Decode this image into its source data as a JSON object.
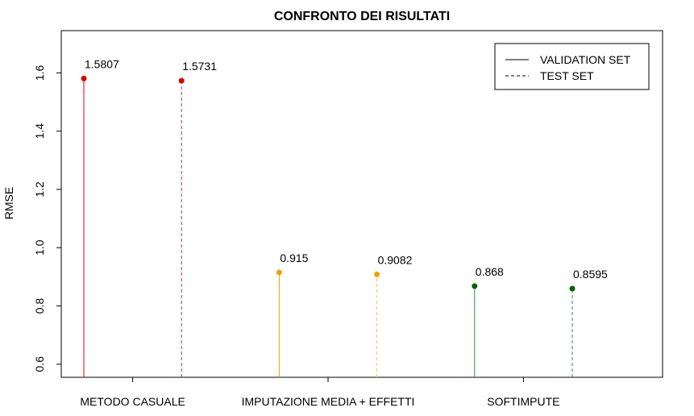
{
  "chart_data": {
    "type": "lollipop",
    "title": "CONFRONTO DEI RISULTATI",
    "xlabel": "",
    "ylabel": "RMSE",
    "ylim": [
      0.555,
      1.745
    ],
    "yticks": [
      "0.6",
      "0.8",
      "1.0",
      "1.2",
      "1.4",
      "1.6"
    ],
    "categories": [
      "METODO CASUALE",
      "IMPUTAZIONE MEDIA + EFFETTI",
      "SOFTIMPUTE"
    ],
    "series": [
      {
        "name": "VALIDATION SET",
        "line_style": "solid",
        "values": [
          1.5807,
          0.915,
          0.868
        ],
        "labels": [
          "1.5807",
          "0.915",
          "0.868"
        ]
      },
      {
        "name": "TEST SET",
        "line_style": "dashed",
        "values": [
          1.5731,
          0.9082,
          0.8595
        ],
        "labels": [
          "1.5731",
          "0.9082",
          "0.8595"
        ]
      }
    ],
    "colors": {
      "validation": [
        "#dd0000",
        "#f5a000",
        "#006400"
      ],
      "test": [
        "#dd0000",
        "#f5a000",
        "#006400"
      ],
      "validation_line": [
        "#dd0000",
        "#f5a000",
        "#2e8b57"
      ],
      "test_line": [
        "#b03060",
        "#f5c060",
        "#2e8b57"
      ]
    },
    "legend": {
      "position": "top-right",
      "entries": [
        {
          "label": "VALIDATION SET",
          "style": "solid"
        },
        {
          "label": "TEST SET",
          "style": "dashed"
        }
      ]
    },
    "grid": false
  }
}
